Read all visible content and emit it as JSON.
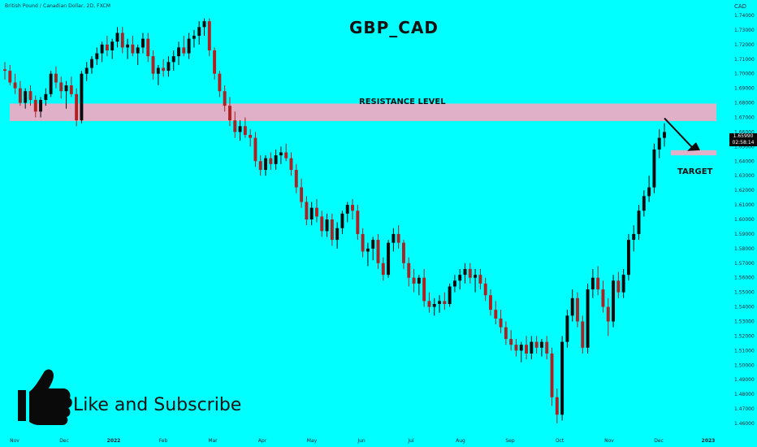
{
  "header": {
    "symbol_line": "British Pound / Canadian Dollar, 2D, FXCM",
    "title": "GBP_CAD",
    "currency": "CAD"
  },
  "annotations": {
    "resistance_label": "RESISTANCE LEVEL",
    "target_label": "TARGET",
    "price_tag_value": "1.65990",
    "price_tag_time": "02:58:14",
    "like_text": "Like and Subscribe"
  },
  "colors": {
    "background": "#00ffff",
    "bull_candle": "#0a0a0a",
    "bear_candle": "#b02020",
    "resistance_zone": "#e0b0c8",
    "target_zone": "#e0b0c8"
  },
  "chart_data": {
    "type": "candlestick",
    "title": "GBP_CAD",
    "ylabel": "",
    "xlabel": "",
    "ylim": [
      1.455,
      1.745
    ],
    "y_ticks": [
      "1.74000",
      "1.73000",
      "1.72000",
      "1.71000",
      "1.70000",
      "1.69000",
      "1.68000",
      "1.67000",
      "1.66000",
      "1.65000",
      "1.64000",
      "1.63000",
      "1.62000",
      "1.61000",
      "1.60000",
      "1.59000",
      "1.58000",
      "1.57000",
      "1.56000",
      "1.55000",
      "1.54000",
      "1.53000",
      "1.52000",
      "1.51000",
      "1.50000",
      "1.49000",
      "1.48000",
      "1.47000",
      "1.46000"
    ],
    "x_ticks": [
      "Nov",
      "Dec",
      "2022",
      "Feb",
      "Mar",
      "Apr",
      "May",
      "Jun",
      "Jul",
      "Aug",
      "Sep",
      "Oct",
      "Nov",
      "Dec",
      "2023"
    ],
    "resistance_zone": [
      1.6675,
      1.6795
    ],
    "target_zone": [
      1.644,
      1.6475
    ],
    "last_price": 1.6599,
    "series": [
      {
        "name": "GBPCAD 2D",
        "ohlc": [
          [
            1.703,
            1.708,
            1.696,
            1.702
          ],
          [
            1.702,
            1.706,
            1.692,
            1.694
          ],
          [
            1.694,
            1.7,
            1.686,
            1.69
          ],
          [
            1.69,
            1.695,
            1.678,
            1.68
          ],
          [
            1.68,
            1.69,
            1.676,
            1.688
          ],
          [
            1.688,
            1.692,
            1.678,
            1.682
          ],
          [
            1.682,
            1.685,
            1.67,
            1.674
          ],
          [
            1.674,
            1.684,
            1.67,
            1.682
          ],
          [
            1.682,
            1.69,
            1.678,
            1.686
          ],
          [
            1.686,
            1.702,
            1.684,
            1.7
          ],
          [
            1.7,
            1.705,
            1.69,
            1.694
          ],
          [
            1.694,
            1.698,
            1.683,
            1.688
          ],
          [
            1.688,
            1.695,
            1.676,
            1.692
          ],
          [
            1.692,
            1.698,
            1.684,
            1.686
          ],
          [
            1.686,
            1.69,
            1.664,
            1.668
          ],
          [
            1.668,
            1.702,
            1.666,
            1.7
          ],
          [
            1.7,
            1.708,
            1.695,
            1.704
          ],
          [
            1.704,
            1.712,
            1.7,
            1.71
          ],
          [
            1.71,
            1.718,
            1.706,
            1.714
          ],
          [
            1.714,
            1.722,
            1.708,
            1.72
          ],
          [
            1.72,
            1.726,
            1.712,
            1.716
          ],
          [
            1.716,
            1.724,
            1.71,
            1.722
          ],
          [
            1.722,
            1.732,
            1.718,
            1.728
          ],
          [
            1.728,
            1.732,
            1.714,
            1.718
          ],
          [
            1.718,
            1.724,
            1.71,
            1.72
          ],
          [
            1.72,
            1.726,
            1.712,
            1.714
          ],
          [
            1.714,
            1.72,
            1.706,
            1.718
          ],
          [
            1.718,
            1.728,
            1.714,
            1.724
          ],
          [
            1.724,
            1.728,
            1.708,
            1.712
          ],
          [
            1.712,
            1.716,
            1.696,
            1.7
          ],
          [
            1.7,
            1.706,
            1.692,
            1.704
          ],
          [
            1.704,
            1.71,
            1.698,
            1.702
          ],
          [
            1.702,
            1.712,
            1.698,
            1.708
          ],
          [
            1.708,
            1.716,
            1.702,
            1.712
          ],
          [
            1.712,
            1.722,
            1.706,
            1.718
          ],
          [
            1.718,
            1.726,
            1.712,
            1.714
          ],
          [
            1.714,
            1.728,
            1.71,
            1.724
          ],
          [
            1.724,
            1.73,
            1.718,
            1.726
          ],
          [
            1.726,
            1.736,
            1.72,
            1.732
          ],
          [
            1.732,
            1.738,
            1.726,
            1.736
          ],
          [
            1.736,
            1.738,
            1.712,
            1.716
          ],
          [
            1.716,
            1.718,
            1.696,
            1.7
          ],
          [
            1.7,
            1.702,
            1.684,
            1.688
          ],
          [
            1.688,
            1.692,
            1.674,
            1.678
          ],
          [
            1.678,
            1.684,
            1.664,
            1.668
          ],
          [
            1.668,
            1.674,
            1.656,
            1.66
          ],
          [
            1.66,
            1.668,
            1.654,
            1.664
          ],
          [
            1.664,
            1.67,
            1.656,
            1.658
          ],
          [
            1.658,
            1.662,
            1.65,
            1.656
          ],
          [
            1.656,
            1.66,
            1.636,
            1.64
          ],
          [
            1.64,
            1.644,
            1.63,
            1.634
          ],
          [
            1.634,
            1.644,
            1.63,
            1.642
          ],
          [
            1.642,
            1.646,
            1.634,
            1.638
          ],
          [
            1.638,
            1.648,
            1.634,
            1.644
          ],
          [
            1.644,
            1.65,
            1.638,
            1.646
          ],
          [
            1.646,
            1.652,
            1.64,
            1.642
          ],
          [
            1.642,
            1.646,
            1.63,
            1.634
          ],
          [
            1.634,
            1.638,
            1.618,
            1.622
          ],
          [
            1.622,
            1.628,
            1.608,
            1.612
          ],
          [
            1.612,
            1.616,
            1.596,
            1.6
          ],
          [
            1.6,
            1.612,
            1.596,
            1.608
          ],
          [
            1.608,
            1.614,
            1.598,
            1.602
          ],
          [
            1.602,
            1.606,
            1.588,
            1.592
          ],
          [
            1.592,
            1.604,
            1.588,
            1.6
          ],
          [
            1.6,
            1.604,
            1.582,
            1.586
          ],
          [
            1.586,
            1.598,
            1.58,
            1.594
          ],
          [
            1.594,
            1.606,
            1.59,
            1.604
          ],
          [
            1.604,
            1.612,
            1.598,
            1.61
          ],
          [
            1.61,
            1.614,
            1.6,
            1.606
          ],
          [
            1.606,
            1.61,
            1.586,
            1.59
          ],
          [
            1.59,
            1.594,
            1.574,
            1.578
          ],
          [
            1.578,
            1.584,
            1.568,
            1.58
          ],
          [
            1.58,
            1.588,
            1.572,
            1.586
          ],
          [
            1.586,
            1.59,
            1.566,
            1.57
          ],
          [
            1.57,
            1.574,
            1.558,
            1.562
          ],
          [
            1.562,
            1.586,
            1.56,
            1.584
          ],
          [
            1.584,
            1.594,
            1.578,
            1.59
          ],
          [
            1.59,
            1.596,
            1.58,
            1.584
          ],
          [
            1.584,
            1.586,
            1.566,
            1.57
          ],
          [
            1.57,
            1.574,
            1.554,
            1.56
          ],
          [
            1.56,
            1.566,
            1.55,
            1.556
          ],
          [
            1.556,
            1.562,
            1.548,
            1.56
          ],
          [
            1.56,
            1.566,
            1.54,
            1.544
          ],
          [
            1.544,
            1.55,
            1.536,
            1.54
          ],
          [
            1.54,
            1.546,
            1.534,
            1.542
          ],
          [
            1.542,
            1.548,
            1.536,
            1.544
          ],
          [
            1.544,
            1.55,
            1.538,
            1.542
          ],
          [
            1.542,
            1.556,
            1.54,
            1.554
          ],
          [
            1.554,
            1.562,
            1.55,
            1.558
          ],
          [
            1.558,
            1.566,
            1.552,
            1.562
          ],
          [
            1.562,
            1.57,
            1.556,
            1.566
          ],
          [
            1.566,
            1.57,
            1.556,
            1.56
          ],
          [
            1.56,
            1.566,
            1.55,
            1.562
          ],
          [
            1.562,
            1.566,
            1.552,
            1.556
          ],
          [
            1.556,
            1.56,
            1.544,
            1.548
          ],
          [
            1.548,
            1.552,
            1.534,
            1.538
          ],
          [
            1.538,
            1.544,
            1.528,
            1.532
          ],
          [
            1.532,
            1.538,
            1.522,
            1.526
          ],
          [
            1.526,
            1.53,
            1.514,
            1.518
          ],
          [
            1.518,
            1.524,
            1.51,
            1.514
          ],
          [
            1.514,
            1.518,
            1.506,
            1.51
          ],
          [
            1.51,
            1.516,
            1.502,
            1.514
          ],
          [
            1.514,
            1.52,
            1.504,
            1.508
          ],
          [
            1.508,
            1.52,
            1.504,
            1.516
          ],
          [
            1.516,
            1.52,
            1.508,
            1.512
          ],
          [
            1.512,
            1.518,
            1.506,
            1.516
          ],
          [
            1.516,
            1.52,
            1.504,
            1.508
          ],
          [
            1.508,
            1.512,
            1.472,
            1.478
          ],
          [
            1.478,
            1.484,
            1.46,
            1.466
          ],
          [
            1.466,
            1.52,
            1.462,
            1.516
          ],
          [
            1.516,
            1.538,
            1.512,
            1.534
          ],
          [
            1.534,
            1.552,
            1.53,
            1.546
          ],
          [
            1.546,
            1.55,
            1.526,
            1.53
          ],
          [
            1.53,
            1.534,
            1.508,
            1.512
          ],
          [
            1.512,
            1.556,
            1.508,
            1.552
          ],
          [
            1.552,
            1.566,
            1.546,
            1.56
          ],
          [
            1.56,
            1.568,
            1.548,
            1.552
          ],
          [
            1.552,
            1.558,
            1.536,
            1.54
          ],
          [
            1.54,
            1.546,
            1.52,
            1.53
          ],
          [
            1.53,
            1.562,
            1.526,
            1.558
          ],
          [
            1.558,
            1.564,
            1.546,
            1.55
          ],
          [
            1.55,
            1.566,
            1.546,
            1.562
          ],
          [
            1.562,
            1.59,
            1.558,
            1.586
          ],
          [
            1.586,
            1.596,
            1.578,
            1.59
          ],
          [
            1.59,
            1.61,
            1.586,
            1.606
          ],
          [
            1.606,
            1.62,
            1.602,
            1.616
          ],
          [
            1.616,
            1.63,
            1.612,
            1.622
          ],
          [
            1.622,
            1.652,
            1.618,
            1.648
          ],
          [
            1.648,
            1.662,
            1.642,
            1.656
          ],
          [
            1.656,
            1.666,
            1.65,
            1.66
          ]
        ]
      }
    ]
  }
}
